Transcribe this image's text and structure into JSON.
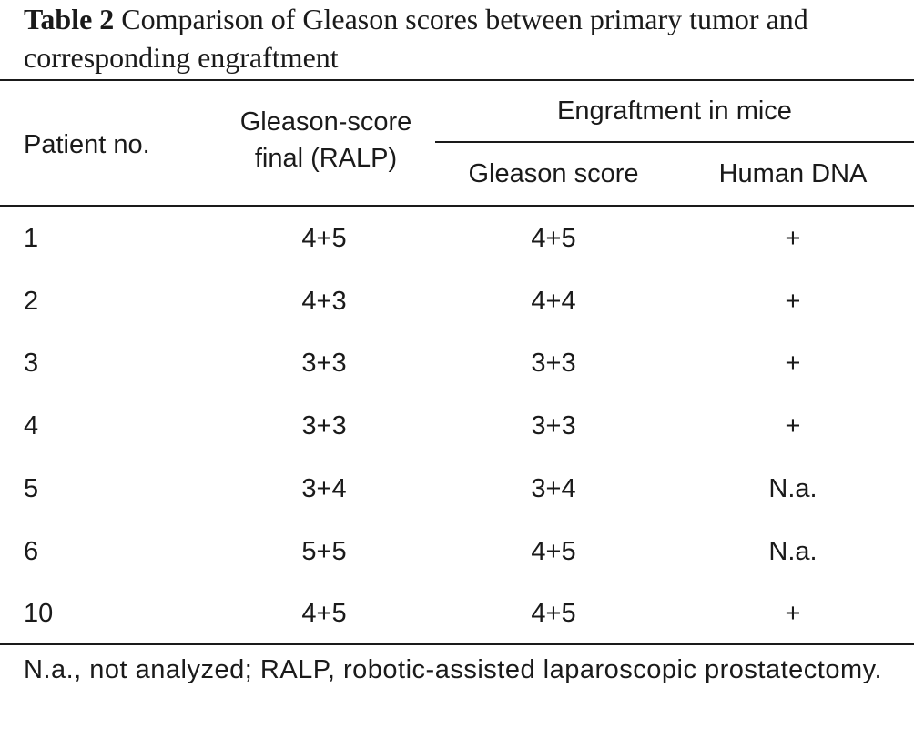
{
  "caption": {
    "label": "Table 2",
    "text": "Comparison of Gleason scores between primary tumor and corresponding engraftment"
  },
  "table": {
    "headers": {
      "patient": "Patient no.",
      "gleason_final_line1": "Gleason-score",
      "gleason_final_line2": "final (RALP)",
      "engraftment_group": "Engraftment in mice",
      "engraftment_gleason": "Gleason score",
      "human_dna": "Human DNA"
    },
    "rows": [
      {
        "patient": "1",
        "gleason_final": "4+5",
        "engraftment_gleason": "4+5",
        "human_dna": "+"
      },
      {
        "patient": "2",
        "gleason_final": "4+3",
        "engraftment_gleason": "4+4",
        "human_dna": "+"
      },
      {
        "patient": "3",
        "gleason_final": "3+3",
        "engraftment_gleason": "3+3",
        "human_dna": "+"
      },
      {
        "patient": "4",
        "gleason_final": "3+3",
        "engraftment_gleason": "3+3",
        "human_dna": "+"
      },
      {
        "patient": "5",
        "gleason_final": "3+4",
        "engraftment_gleason": "3+4",
        "human_dna": "N.a."
      },
      {
        "patient": "6",
        "gleason_final": "5+5",
        "engraftment_gleason": "4+5",
        "human_dna": "N.a."
      },
      {
        "patient": "10",
        "gleason_final": "4+5",
        "engraftment_gleason": "4+5",
        "human_dna": "+"
      }
    ]
  },
  "footnote": "N.a., not analyzed; RALP, robotic-assisted laparoscopic prostatectomy."
}
